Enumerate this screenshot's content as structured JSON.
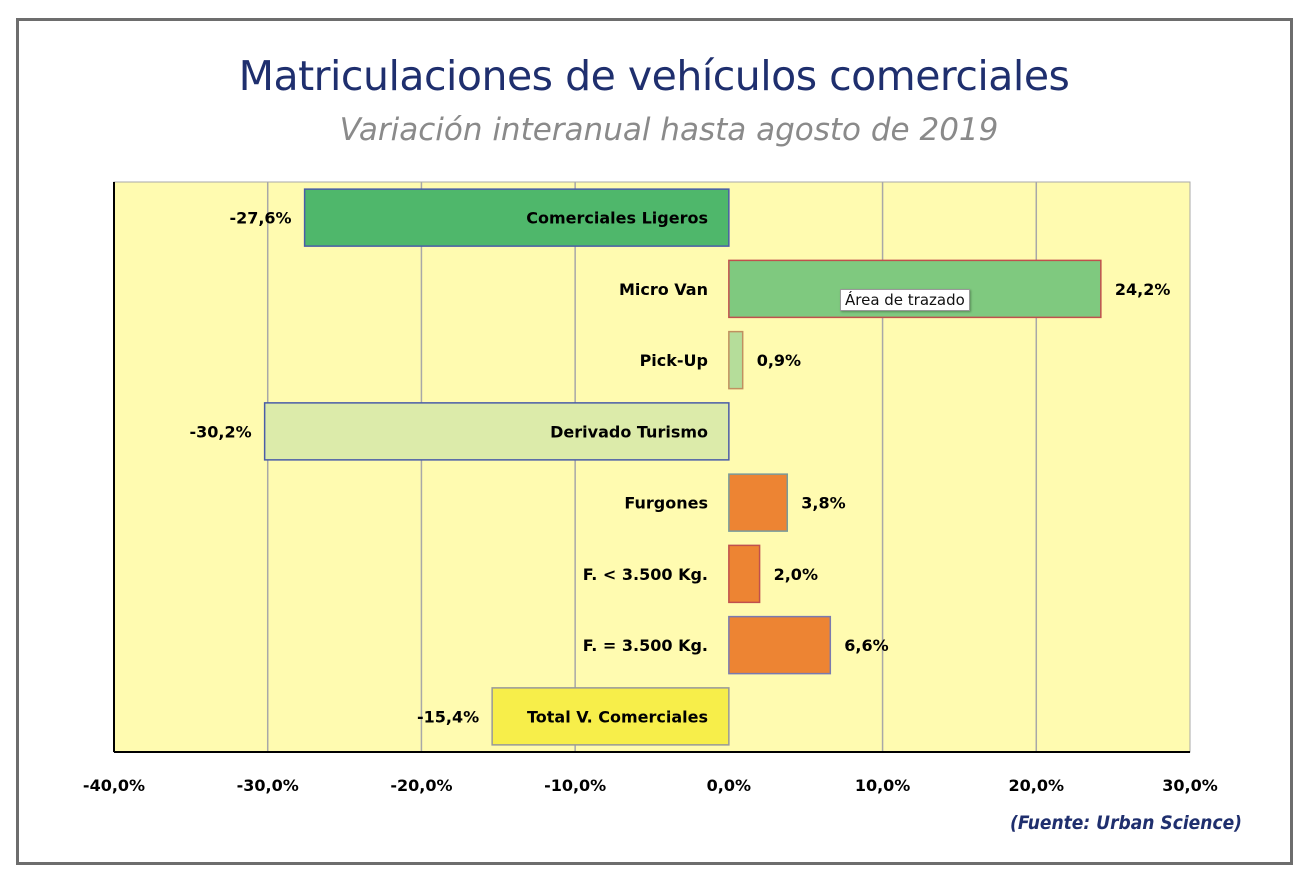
{
  "chart_data": {
    "type": "bar",
    "orientation": "horizontal",
    "title": "Matriculaciones de vehículos comerciales",
    "subtitle": "Variación interanual hasta agosto de 2019",
    "source": "(Fuente: Urban Science)",
    "categories": [
      "Comerciales Ligeros",
      "Micro Van",
      "Pick-Up",
      "Derivado Turismo",
      "Furgones",
      "F. < 3.500 Kg.",
      "F. = 3.500 Kg.",
      "Total V. Comerciales"
    ],
    "values": [
      -27.6,
      24.2,
      0.9,
      -30.2,
      3.8,
      2.0,
      6.6,
      -15.4
    ],
    "value_labels": [
      "-27,6%",
      "24,2%",
      "0,9%",
      "-30,2%",
      "3,8%",
      "2,0%",
      "6,6%",
      "-15,4%"
    ],
    "colors": [
      "#4fb76b",
      "#7fc97f",
      "#b5dd9a",
      "#dcebaa",
      "#ed8433",
      "#ed8433",
      "#ed8433",
      "#f7ee4a"
    ],
    "xlim": [
      -40,
      30
    ],
    "xticks": [
      -40,
      -30,
      -20,
      -10,
      0,
      10,
      20,
      30
    ],
    "xtick_labels": [
      "-40,0%",
      "-30,0%",
      "-20,0%",
      "-10,0%",
      "0,0%",
      "10,0%",
      "20,0%",
      "30,0%"
    ],
    "grid": "vertical",
    "plot_background": "#fffbb0"
  },
  "tooltip": "Área de trazado"
}
